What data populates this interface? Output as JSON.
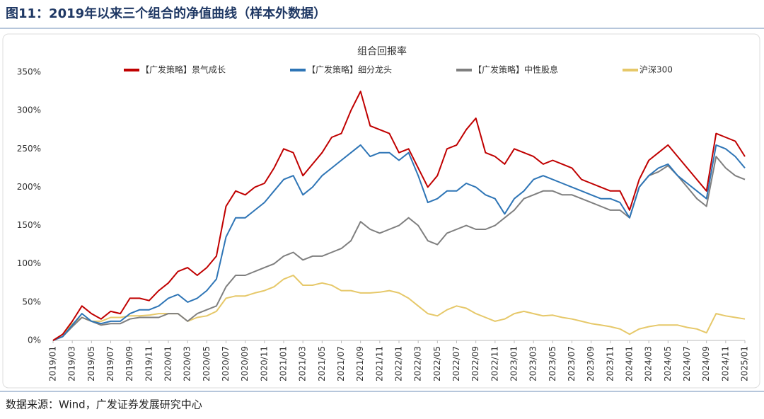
{
  "header": {
    "title": "图11：2019年以来三个组合的净值曲线（样本外数据）"
  },
  "chart_data": {
    "type": "line",
    "title": "组合回报率",
    "categories": [
      "2019/01",
      null,
      "2019/03",
      null,
      "2019/05",
      null,
      "2019/07",
      null,
      "2019/09",
      null,
      "2019/11",
      null,
      "2020/01",
      null,
      "2020/03",
      null,
      "2020/05",
      null,
      "2020/07",
      null,
      "2020/09",
      null,
      "2020/11",
      null,
      "2021/01",
      null,
      "2021/03",
      null,
      "2021/05",
      null,
      "2021/07",
      null,
      "2021/09",
      null,
      "2021/11",
      null,
      "2022/01",
      null,
      "2022/03",
      null,
      "2022/05",
      null,
      "2022/07",
      null,
      "2022/09",
      null,
      "2022/11",
      null,
      "2023/01",
      null,
      "2023/03",
      null,
      "2023/05",
      null,
      "2023/07",
      null,
      "2023/09",
      null,
      "2023/11",
      null,
      "2024/01",
      null,
      "2024/03",
      null,
      "2024/05",
      null,
      "2024/07",
      null,
      "2024/09",
      null,
      "2024/11",
      null,
      "2025/01"
    ],
    "series": [
      {
        "name": "【广发策略】景气成长",
        "color": "#c00000",
        "values": [
          0,
          8,
          25,
          45,
          35,
          28,
          38,
          35,
          55,
          55,
          52,
          65,
          75,
          90,
          95,
          85,
          95,
          110,
          175,
          195,
          190,
          200,
          205,
          225,
          250,
          245,
          215,
          230,
          245,
          265,
          270,
          300,
          325,
          280,
          275,
          270,
          245,
          250,
          225,
          200,
          215,
          250,
          255,
          275,
          290,
          245,
          240,
          230,
          250,
          245,
          240,
          230,
          235,
          230,
          225,
          210,
          205,
          200,
          195,
          195,
          170,
          210,
          235,
          245,
          255,
          240,
          225,
          210,
          195,
          270,
          265,
          260,
          240
        ]
      },
      {
        "name": "【广发策略】细分龙头",
        "color": "#2e75b6",
        "values": [
          0,
          5,
          20,
          35,
          25,
          22,
          25,
          25,
          35,
          40,
          40,
          45,
          55,
          60,
          50,
          55,
          65,
          80,
          135,
          160,
          160,
          170,
          180,
          195,
          210,
          215,
          190,
          200,
          215,
          225,
          235,
          245,
          255,
          240,
          245,
          245,
          235,
          245,
          215,
          180,
          185,
          195,
          195,
          205,
          200,
          190,
          185,
          165,
          185,
          195,
          210,
          215,
          210,
          205,
          200,
          195,
          190,
          185,
          185,
          180,
          160,
          200,
          215,
          225,
          230,
          215,
          205,
          195,
          185,
          255,
          250,
          240,
          225
        ]
      },
      {
        "name": "【广发策略】中性股息",
        "color": "#7f7f7f",
        "values": [
          0,
          5,
          18,
          30,
          25,
          20,
          22,
          22,
          28,
          30,
          30,
          30,
          35,
          35,
          25,
          35,
          40,
          45,
          70,
          85,
          85,
          90,
          95,
          100,
          110,
          115,
          105,
          110,
          110,
          115,
          120,
          130,
          155,
          145,
          140,
          145,
          150,
          160,
          150,
          130,
          125,
          140,
          145,
          150,
          145,
          145,
          150,
          160,
          170,
          185,
          190,
          195,
          195,
          190,
          190,
          185,
          180,
          175,
          170,
          170,
          160,
          200,
          215,
          220,
          228,
          215,
          200,
          185,
          175,
          240,
          225,
          215,
          210
        ]
      },
      {
        "name": "沪深300",
        "color": "#e6c869",
        "values": [
          0,
          8,
          22,
          30,
          25,
          25,
          30,
          30,
          32,
          32,
          33,
          35,
          35,
          35,
          25,
          30,
          32,
          38,
          55,
          58,
          58,
          62,
          65,
          70,
          80,
          85,
          72,
          72,
          75,
          72,
          65,
          65,
          62,
          62,
          63,
          65,
          62,
          55,
          45,
          35,
          32,
          40,
          45,
          42,
          35,
          30,
          25,
          28,
          35,
          38,
          35,
          32,
          33,
          30,
          28,
          25,
          22,
          20,
          18,
          15,
          8,
          15,
          18,
          20,
          20,
          20,
          17,
          15,
          10,
          35,
          32,
          30,
          28
        ]
      }
    ],
    "ylim": [
      0,
      350
    ],
    "yticks": [
      {
        "value": 0,
        "label": "0%"
      },
      {
        "value": 50,
        "label": "50%"
      },
      {
        "value": 100,
        "label": "100%"
      },
      {
        "value": 150,
        "label": "150%"
      },
      {
        "value": 200,
        "label": "200%"
      },
      {
        "value": 250,
        "label": "250%"
      },
      {
        "value": 300,
        "label": "300%"
      },
      {
        "value": 350,
        "label": "350%"
      }
    ]
  },
  "footer": {
    "source": "数据来源：Wind，广发证券发展研究中心"
  }
}
